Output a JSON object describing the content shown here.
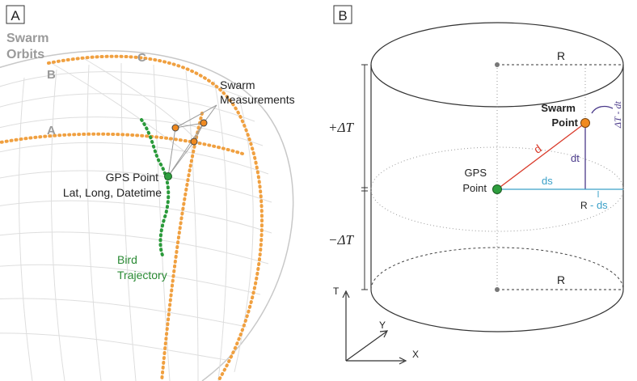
{
  "panel_a": {
    "tag": "A",
    "swarm_orbits_line1": "Swarm",
    "swarm_orbits_line2": "Orbits",
    "orbit_b": "B",
    "orbit_c": "C",
    "orbit_a": "A",
    "swarm_meas_line1": "Swarm",
    "swarm_meas_line2": "Measurements",
    "gps_line1": "GPS Point",
    "gps_line2": "Lat, Long, Datetime",
    "bird_line1": "Bird",
    "bird_line2": "Trajectory"
  },
  "panel_b": {
    "tag": "B",
    "r_top": "R",
    "r_bottom": "R",
    "swarm_line1": "Swarm",
    "swarm_line2": "Point",
    "gps_line1": "GPS",
    "gps_line2": "Point",
    "d": "d",
    "dt": "dt",
    "ds": "ds",
    "r_minus_ds_r": "R",
    "r_minus_ds_ds": "- ds",
    "dT_minus_dt": "ΔT - dt",
    "plus_dT": "+ΔT",
    "minus_dT": "−ΔT",
    "axis_t": "T",
    "axis_y": "Y",
    "axis_x": "X"
  },
  "colors": {
    "orbit": "#f0a040",
    "bird_trajectory": "#2a9a3a",
    "gps_point": "#2e9e3e",
    "swarm_point": "#f08a20",
    "distance_d": "#d93a2a",
    "distance_dt": "#4a3a8a",
    "distance_ds": "#3aa0c8",
    "grid": "#d8d8d8",
    "label_gray": "#9a9a9a"
  }
}
